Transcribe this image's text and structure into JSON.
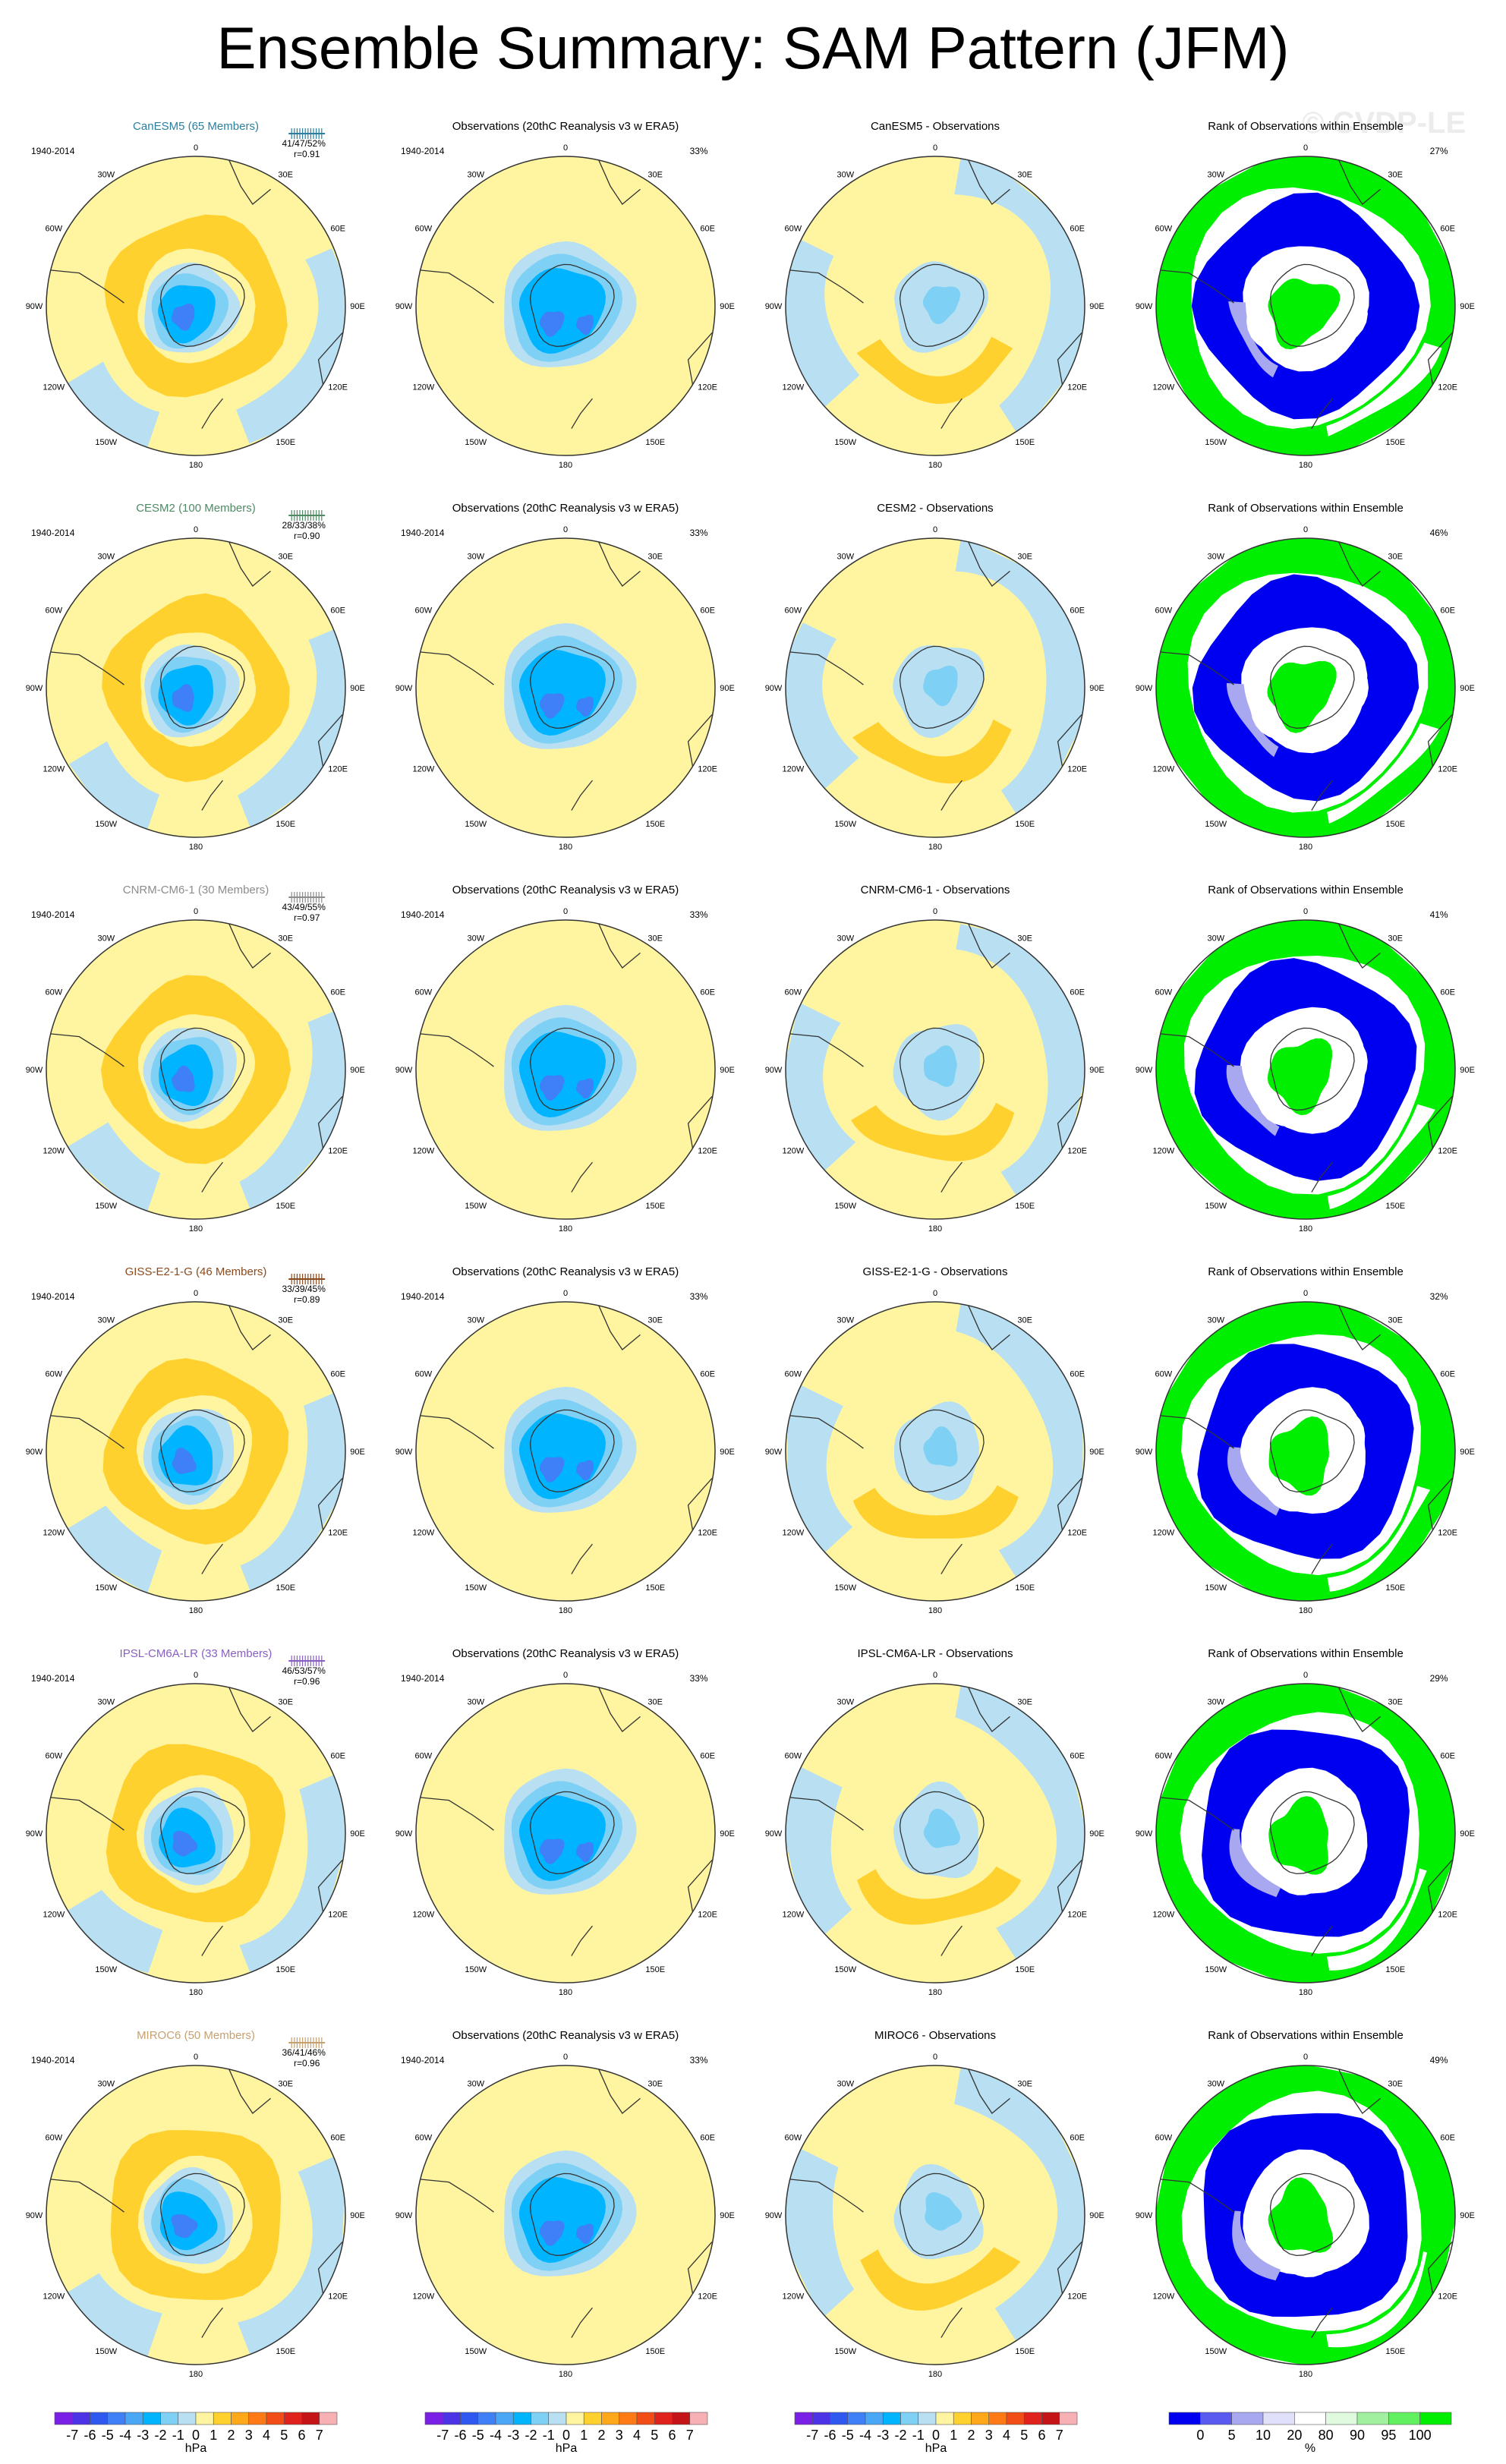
{
  "title": "Ensemble Summary: SAM Pattern (JFM)",
  "watermark": "© CVDP-LE",
  "column_titles": {
    "observations": "Observations (20thC Reanalysis v3 w ERA5)",
    "rank": "Rank of Observations within Ensemble",
    "difference_suffix": " - Observations"
  },
  "period": "1940-2014",
  "obs_percent": "33%",
  "lon_labels": {
    "top": "0",
    "upper_right": "30E",
    "right_upper": "60E",
    "right": "90E",
    "right_lower": "120E",
    "lower_right": "150E",
    "bottom": "180",
    "lower_left": "150W",
    "left_lower": "120W",
    "left": "90W",
    "left_upper": "60W",
    "upper_left": "30W"
  },
  "rows": [
    {
      "model": "CanESM5",
      "members_label": "CanESM5 (65 Members)",
      "color": "#2a7fa0",
      "stats": "41/47/52%",
      "r": "r=0.91",
      "rank_percent": "27%"
    },
    {
      "model": "CESM2",
      "members_label": "CESM2 (100 Members)",
      "color": "#4f8a64",
      "stats": "28/33/38%",
      "r": "r=0.90",
      "rank_percent": "46%"
    },
    {
      "model": "CNRM-CM6-1",
      "members_label": "CNRM-CM6-1 (30 Members)",
      "color": "#8c8c8c",
      "stats": "43/49/55%",
      "r": "r=0.97",
      "rank_percent": "41%"
    },
    {
      "model": "GISS-E2-1-G",
      "members_label": "GISS-E2-1-G (46 Members)",
      "color": "#8a4a1e",
      "stats": "33/39/45%",
      "r": "r=0.89",
      "rank_percent": "32%"
    },
    {
      "model": "IPSL-CM6A-LR",
      "members_label": "IPSL-CM6A-LR (33 Members)",
      "color": "#8a5fc4",
      "stats": "46/53/57%",
      "r": "r=0.96",
      "rank_percent": "29%"
    },
    {
      "model": "MIROC6",
      "members_label": "MIROC6 (50 Members)",
      "color": "#c7a070",
      "stats": "36/41/46%",
      "r": "r=0.96",
      "rank_percent": "49%"
    }
  ],
  "colorbar_hpa": {
    "labels": [
      "-7",
      "-6",
      "-5",
      "-4",
      "-3",
      "-2",
      "-1",
      "0",
      "1",
      "2",
      "3",
      "4",
      "5",
      "6",
      "7"
    ],
    "units": "hPa",
    "colors": [
      "#7a1fe6",
      "#4d33e6",
      "#2e58f0",
      "#3f7ff7",
      "#4aa6f7",
      "#00b4ff",
      "#7fd0f5",
      "#b8e0f2",
      "#fff5a0",
      "#ffd12e",
      "#ffa81a",
      "#ff7a14",
      "#f24d16",
      "#e0221c",
      "#c41418",
      "#f7b0b4"
    ]
  },
  "colorbar_pct": {
    "labels": [
      "0",
      "5",
      "10",
      "20",
      "80",
      "90",
      "95",
      "100"
    ],
    "units": "%",
    "colors": [
      "#0000f0",
      "#5a5af0",
      "#a8a8f0",
      "#e0e0fa",
      "#ffffff",
      "#e0fae0",
      "#a0f0a0",
      "#60f060",
      "#00ee00"
    ]
  }
}
